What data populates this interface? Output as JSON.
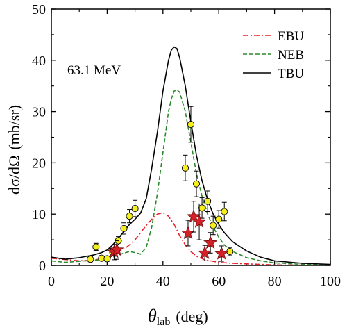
{
  "chart_data": {
    "type": "line",
    "x_title_symbol": "θ",
    "x_title_sub": "lab",
    "x_title_unit": "(deg)",
    "y_title_1": "dσ/dΩ",
    "y_title_2": "(mb/sr)",
    "annotation": "63.1 MeV",
    "xlim": [
      0,
      100
    ],
    "ylim": [
      0,
      50
    ],
    "x_ticks": [
      0,
      20,
      40,
      60,
      80,
      100
    ],
    "y_ticks": [
      0,
      10,
      20,
      30,
      40,
      50
    ],
    "x_tick_labels": [
      "0",
      "20",
      "40",
      "60",
      "80",
      "100"
    ],
    "y_tick_labels": [
      "0",
      "10",
      "20",
      "30",
      "40",
      "50"
    ],
    "grid": false,
    "legend_position": "top-right",
    "series": [
      {
        "name": "EBU",
        "color": "#e8202a",
        "style": "dashdot",
        "x": [
          0,
          10,
          15,
          18,
          20,
          22,
          24,
          26,
          28,
          30,
          32,
          34,
          36,
          38,
          40,
          42,
          44,
          46,
          48,
          50,
          52,
          55,
          58,
          60,
          65,
          70,
          80,
          90,
          100
        ],
        "y": [
          1.4,
          0.9,
          1.0,
          1.3,
          1.6,
          2.1,
          2.6,
          3.2,
          4.0,
          5.0,
          6.4,
          7.8,
          9.0,
          10.0,
          10.3,
          9.6,
          8.0,
          5.8,
          4.0,
          2.7,
          1.8,
          1.1,
          0.8,
          0.6,
          0.4,
          0.3,
          0.1,
          0.05,
          0.0
        ]
      },
      {
        "name": "NEB",
        "color": "#2a8a2a",
        "style": "dashed",
        "x": [
          0,
          5,
          10,
          15,
          18,
          20,
          22,
          24,
          26,
          28,
          30,
          32,
          34,
          36,
          38,
          40,
          42,
          43,
          44,
          45,
          46,
          48,
          50,
          52,
          54,
          56,
          58,
          60,
          62,
          65,
          70,
          75,
          80,
          90,
          100
        ],
        "y": [
          0.9,
          0.6,
          0.8,
          1.0,
          1.1,
          1.2,
          1.6,
          2.0,
          2.4,
          2.7,
          2.5,
          2.2,
          3.5,
          7.5,
          14.0,
          22.0,
          30.0,
          32.5,
          34.0,
          34.2,
          33.8,
          30.0,
          24.0,
          18.0,
          13.5,
          10.0,
          7.5,
          5.5,
          4.0,
          2.7,
          1.5,
          0.9,
          0.5,
          0.2,
          0.1
        ]
      },
      {
        "name": "TBU",
        "color": "#000000",
        "style": "solid",
        "x": [
          0,
          5,
          10,
          15,
          18,
          20,
          22,
          24,
          26,
          28,
          30,
          32,
          34,
          36,
          38,
          40,
          42,
          43,
          44,
          45,
          46,
          48,
          50,
          52,
          54,
          56,
          58,
          60,
          62,
          65,
          70,
          75,
          80,
          90,
          100
        ],
        "y": [
          1.6,
          1.2,
          1.5,
          2.0,
          2.5,
          3.0,
          4.0,
          5.3,
          6.6,
          8.0,
          9.0,
          10.2,
          13.0,
          19.0,
          26.0,
          34.0,
          40.0,
          42.0,
          42.6,
          42.3,
          40.5,
          35.0,
          28.0,
          21.5,
          16.5,
          12.8,
          10.0,
          8.0,
          6.4,
          4.6,
          2.8,
          1.6,
          0.9,
          0.4,
          0.2
        ]
      }
    ],
    "data_circles": [
      {
        "x": 14,
        "y": 1.2,
        "err": 0.5
      },
      {
        "x": 16,
        "y": 3.6,
        "err": 0.7
      },
      {
        "x": 18,
        "y": 1.4,
        "err": 0.5
      },
      {
        "x": 20,
        "y": 1.3,
        "err": 0.5
      },
      {
        "x": 22,
        "y": 2.6,
        "err": 0.7
      },
      {
        "x": 24,
        "y": 4.8,
        "err": 0.8
      },
      {
        "x": 26,
        "y": 7.2,
        "err": 1.1
      },
      {
        "x": 28,
        "y": 9.6,
        "err": 1.3
      },
      {
        "x": 30,
        "y": 11.1,
        "err": 1.6
      },
      {
        "x": 48,
        "y": 19.0,
        "err": 2.5
      },
      {
        "x": 50,
        "y": 27.5,
        "err": 3.5
      },
      {
        "x": 52,
        "y": 15.9,
        "err": 2.5
      },
      {
        "x": 54,
        "y": 11.2,
        "err": 2.0
      },
      {
        "x": 56,
        "y": 12.5,
        "err": 2.0
      },
      {
        "x": 58,
        "y": 7.8,
        "err": 1.8
      },
      {
        "x": 60,
        "y": 9.0,
        "err": 1.7
      },
      {
        "x": 62,
        "y": 10.5,
        "err": 1.8
      },
      {
        "x": 64,
        "y": 2.7,
        "err": 0.8
      }
    ],
    "data_stars": [
      {
        "x": 22.5,
        "y": 2.6,
        "err": 1.5
      },
      {
        "x": 23.5,
        "y": 3.0,
        "err": 1.8
      },
      {
        "x": 49,
        "y": 6.3,
        "err": 2.5
      },
      {
        "x": 51,
        "y": 9.5,
        "err": 3.0
      },
      {
        "x": 53,
        "y": 8.5,
        "err": 3.5
      },
      {
        "x": 55,
        "y": 2.4,
        "err": 1.5
      },
      {
        "x": 57,
        "y": 4.4,
        "err": 2.0
      },
      {
        "x": 61,
        "y": 2.3,
        "err": 1.5
      }
    ]
  }
}
